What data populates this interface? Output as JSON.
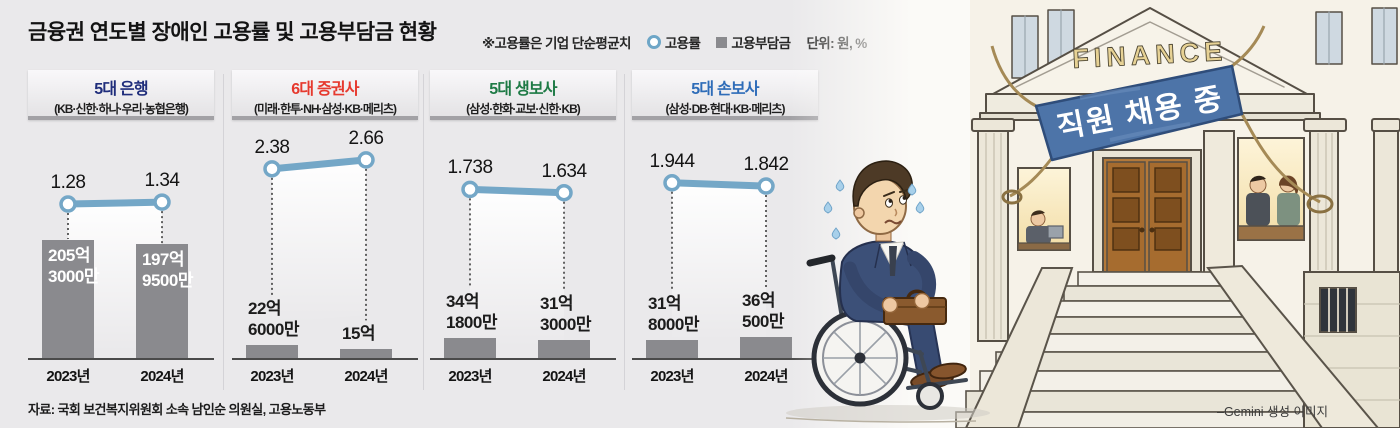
{
  "header": {
    "title": "금융권 연도별 장애인 고용률 및 고용부담금 현황",
    "note": "※고용률은 기업 단순평균치",
    "legend_rate": "고용률",
    "legend_levy": "고용부담금",
    "unit": "단위: 원, %"
  },
  "source": "자료: 국회 보건복지위원회 소속 남인순 의원실, 고용노동부",
  "credit": "–Gemini 생성 이미지",
  "colors": {
    "background": "#eae9eb",
    "bar": "#8a8a8e",
    "rate_line": "#74a7c7",
    "axis": "#4a4a4a",
    "bank_title": "#1f2d7b",
    "securities_title": "#e6392e",
    "life_title": "#1e7a45",
    "nonlife_title": "#2e6cb8"
  },
  "illustration": {
    "sign": "FINANCE",
    "banner": "직원 채용 중"
  },
  "chart_data": {
    "type": "bar",
    "combo": "bar (고용부담금, 억원) + line with circle markers (고용률, %)",
    "unit": "원, %",
    "legend_position": "top",
    "grid": false,
    "categories": [
      "2023년",
      "2024년"
    ],
    "panels": [
      {
        "title": "5대 은행",
        "title_color": "#1f2d7b",
        "subtitle": "(KB·신한·하나·우리·농협은행)",
        "categories": [
          "2023년",
          "2024년"
        ],
        "rate": {
          "name": "고용률",
          "values": [
            1.28,
            1.34
          ],
          "labels": [
            "1.28",
            "1.34"
          ]
        },
        "levy": {
          "name": "고용부담금",
          "values_100m_won": [
            205.3,
            197.95
          ],
          "labels": [
            [
              "205억",
              "3000만"
            ],
            [
              "197억",
              "9500만"
            ]
          ],
          "label_placement": "inside"
        }
      },
      {
        "title": "6대 증권사",
        "title_color": "#e6392e",
        "subtitle": "(미래·한투·NH·삼성·KB·메리츠)",
        "categories": [
          "2023년",
          "2024년"
        ],
        "rate": {
          "name": "고용률",
          "values": [
            2.38,
            2.66
          ],
          "labels": [
            "2.38",
            "2.66"
          ]
        },
        "levy": {
          "name": "고용부담금",
          "values_100m_won": [
            22.6,
            15
          ],
          "labels": [
            [
              "22억",
              "6000만"
            ],
            [
              "15억"
            ]
          ],
          "label_placement": "outside"
        }
      },
      {
        "title": "5대 생보사",
        "title_color": "#1e7a45",
        "subtitle": "(삼성·한화·교보·신한·KB)",
        "categories": [
          "2023년",
          "2024년"
        ],
        "rate": {
          "name": "고용률",
          "values": [
            1.738,
            1.634
          ],
          "labels": [
            "1.738",
            "1.634"
          ]
        },
        "levy": {
          "name": "고용부담금",
          "values_100m_won": [
            34.18,
            31.3
          ],
          "labels": [
            [
              "34억",
              "1800만"
            ],
            [
              "31억",
              "3000만"
            ]
          ],
          "label_placement": "outside"
        }
      },
      {
        "title": "5대 손보사",
        "title_color": "#2e6cb8",
        "subtitle": "(삼성·DB·현대·KB·메리츠)",
        "categories": [
          "2023년",
          "2024년"
        ],
        "rate": {
          "name": "고용률",
          "values": [
            1.944,
            1.842
          ],
          "labels": [
            "1.944",
            "1.842"
          ]
        },
        "levy": {
          "name": "고용부담금",
          "values_100m_won": [
            31.8,
            36.05
          ],
          "labels": [
            [
              "31억",
              "8000만"
            ],
            [
              "36억",
              "500만"
            ]
          ],
          "label_placement": "outside"
        }
      }
    ]
  }
}
